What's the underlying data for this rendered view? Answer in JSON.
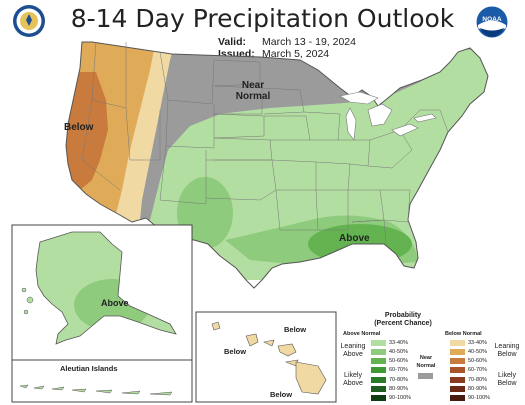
{
  "title": "8-14 Day Precipitation Outlook",
  "valid_label": "Valid:",
  "valid_value": "March 13 - 19, 2024",
  "issued_label": "Issued:",
  "issued_value": "March 5, 2024",
  "logos": {
    "left": "doc-seal",
    "right_text": "NOAA"
  },
  "map_labels": {
    "below_main": "Below",
    "near_normal_1": "Near",
    "near_normal_2": "Normal",
    "above_main": "Above",
    "above_alaska": "Above",
    "hawaii_below_1": "Below",
    "hawaii_below_2": "Below",
    "hawaii_below_3": "Below",
    "aleutian": "Aleutian Islands"
  },
  "legend": {
    "title_1": "Probability",
    "title_2": "(Percent Chance)",
    "above_head": "Above Normal",
    "below_head": "Below Normal",
    "near_1": "Near",
    "near_2": "Normal",
    "leaning_above_1": "Leaning",
    "leaning_above_2": "Above",
    "likely_above_1": "Likely",
    "likely_above_2": "Above",
    "leaning_below_1": "Leaning",
    "leaning_below_2": "Below",
    "likely_below_1": "Likely",
    "likely_below_2": "Below",
    "ranges": [
      "33-40%",
      "40-50%",
      "50-60%",
      "60-70%",
      "70-80%",
      "80-90%",
      "90-100%"
    ],
    "above_colors": [
      "#b3dea1",
      "#8fcb7c",
      "#63b450",
      "#3f9a35",
      "#2b7a2a",
      "#1f5c1f",
      "#123d12"
    ],
    "below_colors": [
      "#f1d9a3",
      "#e0ab58",
      "#c97a3d",
      "#a8552a",
      "#8a3c1f",
      "#6b2a15",
      "#4a1a0c"
    ],
    "near_color": "#9b9b9b"
  }
}
